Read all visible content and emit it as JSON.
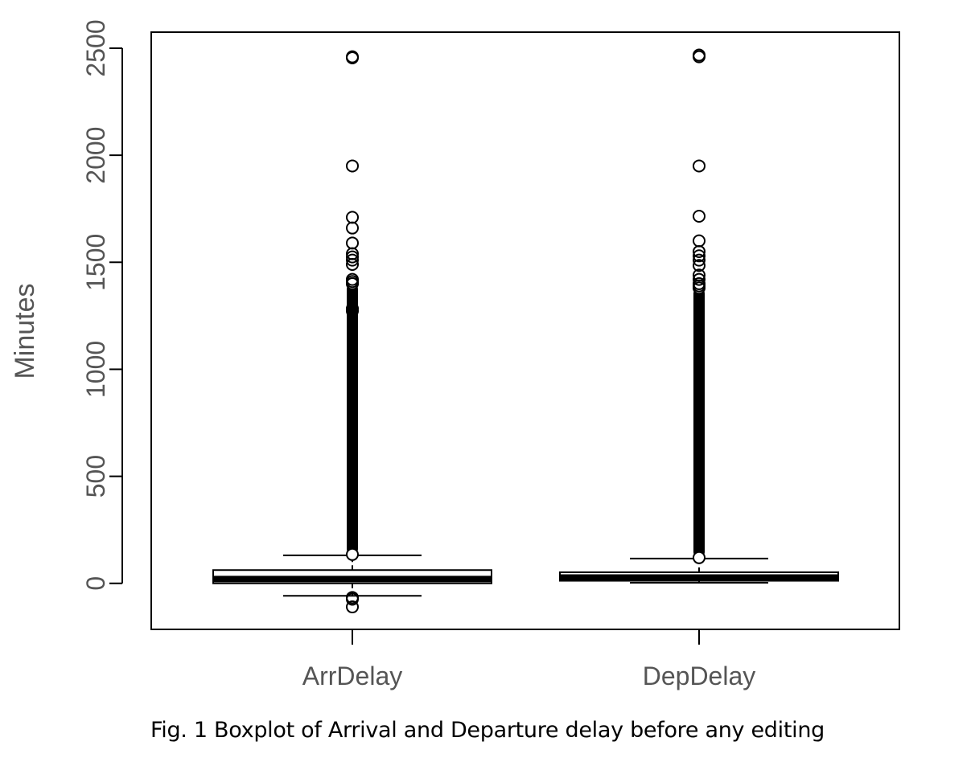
{
  "caption": "Fig. 1 Boxplot of Arrival and Departure delay before any editing",
  "chart_data": {
    "type": "boxplot",
    "title": "",
    "xlabel": "",
    "ylabel": "Minutes",
    "ylim": [
      -215,
      2575
    ],
    "yticks": [
      0,
      500,
      1000,
      1500,
      2000,
      2500
    ],
    "grid": false,
    "legend": "none",
    "categories": [
      "ArrDelay",
      "DepDelay"
    ],
    "boxes": [
      {
        "name": "ArrDelay",
        "whisker_low": -58,
        "q1": 0,
        "median": 20,
        "q3": 62,
        "whisker_high": 131,
        "outliers_dense_range": [
          135,
          1400
        ],
        "outliers": [
          -66,
          -74,
          -110,
          1272,
          1284,
          1400,
          1410,
          1420,
          1490,
          1510,
          1525,
          1540,
          1590,
          1660,
          1710,
          1950,
          2455,
          2460
        ]
      },
      {
        "name": "DepDelay",
        "whisker_low": 3,
        "q1": 12,
        "median": 27,
        "q3": 52,
        "whisker_high": 116,
        "outliers_dense_range": [
          120,
          1380
        ],
        "outliers": [
          1390,
          1400,
          1420,
          1440,
          1485,
          1510,
          1530,
          1550,
          1600,
          1715,
          1950,
          2460,
          2468
        ]
      }
    ]
  }
}
